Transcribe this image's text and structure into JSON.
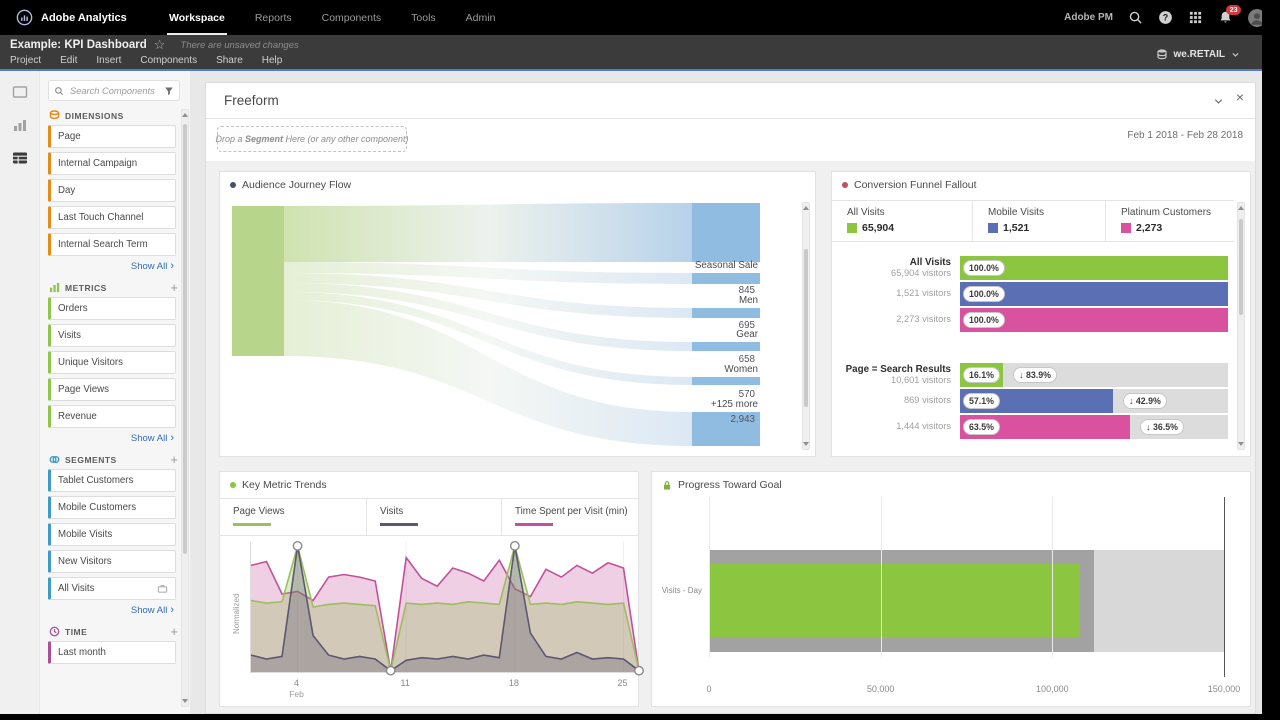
{
  "topbar": {
    "brand": "Adobe Analytics",
    "nav": [
      {
        "label": "Workspace",
        "active": true
      },
      {
        "label": "Reports",
        "active": false
      },
      {
        "label": "Components",
        "active": false
      },
      {
        "label": "Tools",
        "active": false
      },
      {
        "label": "Admin",
        "active": false
      }
    ],
    "user_label": "Adobe PM",
    "notification_count": "23"
  },
  "project_bar": {
    "title": "Example: KPI Dashboard",
    "unsaved_note": "There are unsaved changes",
    "menus": [
      "Project",
      "Edit",
      "Insert",
      "Components",
      "Share",
      "Help"
    ],
    "report_suite": "we.RETAIL"
  },
  "sidebar": {
    "search_placeholder": "Search Components",
    "sections": [
      {
        "title": "DIMENSIONS",
        "icon": "dimensions-icon",
        "accent": "#e68a19",
        "has_add": false,
        "items": [
          {
            "label": "Page"
          },
          {
            "label": "Internal Campaign"
          },
          {
            "label": "Day"
          },
          {
            "label": "Last Touch Channel"
          },
          {
            "label": "Internal Search Term"
          }
        ],
        "show_all": "Show All"
      },
      {
        "title": "METRICS",
        "icon": "metrics-icon",
        "accent": "#8ec54b",
        "has_add": true,
        "items": [
          {
            "label": "Orders"
          },
          {
            "label": "Visits"
          },
          {
            "label": "Unique Visitors"
          },
          {
            "label": "Page Views"
          },
          {
            "label": "Revenue"
          }
        ],
        "show_all": "Show All"
      },
      {
        "title": "SEGMENTS",
        "icon": "segments-icon",
        "accent": "#3e9bc8",
        "has_add": true,
        "items": [
          {
            "label": "Tablet Customers"
          },
          {
            "label": "Mobile Customers"
          },
          {
            "label": "Mobile Visits"
          },
          {
            "label": "New Visitors"
          },
          {
            "label": "All Visits",
            "org_icon": true
          }
        ],
        "show_all": "Show All"
      },
      {
        "title": "TIME",
        "icon": "time-icon",
        "accent": "#a8509c",
        "has_add": true,
        "items": [
          {
            "label": "Last month"
          }
        ]
      }
    ]
  },
  "freeform": {
    "title": "Freeform",
    "drop_zone_prefix": "Drop a ",
    "drop_zone_bold": "Segment",
    "drop_zone_suffix": " Here (or any other component)",
    "date_range": "Feb 1 2018 - Feb 28 2018"
  },
  "chart_data": [
    {
      "id": "audience-journey-flow",
      "type": "sankey",
      "title": "Audience Journey Flow",
      "marker_color": "#4a5064",
      "source_node": {
        "label": "",
        "color": "#b7d68c"
      },
      "target_color": "#90bce1",
      "targets": [
        {
          "label": "",
          "display": ""
        },
        {
          "label": "Seasonal Sale",
          "value": 845,
          "display": "845"
        },
        {
          "label": "Men",
          "value": 695,
          "display": "695"
        },
        {
          "label": "Gear",
          "value": 658,
          "display": "658"
        },
        {
          "label": "Women",
          "value": 570,
          "display": "570"
        },
        {
          "label": "+125 more",
          "value": 2943,
          "display": "2,943"
        }
      ]
    },
    {
      "id": "conversion-funnel-fallout",
      "type": "funnel",
      "title": "Conversion Funnel Fallout",
      "marker_color": "#c44d5e",
      "columns": [
        {
          "label": "All Visits",
          "display": "65,904",
          "color": "#8cc540"
        },
        {
          "label": "Mobile Visits",
          "display": "1,521",
          "color": "#5a6fb4"
        },
        {
          "label": "Platinum Customers",
          "display": "2,273",
          "color": "#d9519f"
        }
      ],
      "steps": [
        {
          "label": "All Visits",
          "rows": [
            {
              "visitors": "65,904 visitors",
              "pct": 100,
              "pct_label": "100.0%",
              "fallout": "",
              "color": "#8cc540"
            },
            {
              "visitors": "1,521 visitors",
              "pct": 100,
              "pct_label": "100.0%",
              "fallout": "",
              "color": "#5a6fb4"
            },
            {
              "visitors": "2,273 visitors",
              "pct": 100,
              "pct_label": "100.0%",
              "fallout": "",
              "color": "#d9519f"
            }
          ]
        },
        {
          "label": "Page = Search Results",
          "rows": [
            {
              "visitors": "10,601 visitors",
              "pct": 16.1,
              "pct_label": "16.1%",
              "fallout": "↓ 83.9%",
              "color": "#8cc540"
            },
            {
              "visitors": "869 visitors",
              "pct": 57.1,
              "pct_label": "57.1%",
              "fallout": "↓ 42.9%",
              "color": "#5a6fb4"
            },
            {
              "visitors": "1,444 visitors",
              "pct": 63.5,
              "pct_label": "63.5%",
              "fallout": "↓ 36.5%",
              "color": "#d9519f"
            }
          ]
        }
      ]
    },
    {
      "id": "key-metric-trends",
      "type": "area",
      "title": "Key Metric Trends",
      "marker_color": "#8cc540",
      "ylabel": "Normalized",
      "x_range": [
        1,
        26
      ],
      "x_ticks": [
        {
          "day": 4,
          "label": "4",
          "sub": "Feb"
        },
        {
          "day": 11,
          "label": "11",
          "sub": ""
        },
        {
          "day": 18,
          "label": "18",
          "sub": ""
        },
        {
          "day": 25,
          "label": "25",
          "sub": ""
        }
      ],
      "series": [
        {
          "name": "Page Views",
          "color": "#9cbf5e",
          "values": [
            0.55,
            0.53,
            0.54,
            0.97,
            0.5,
            0.52,
            0.53,
            0.52,
            0.51,
            0.01,
            0.53,
            0.52,
            0.53,
            0.52,
            0.54,
            0.53,
            0.52,
            0.97,
            0.52,
            0.53,
            0.52,
            0.54,
            0.53,
            0.52,
            0.53,
            0.01
          ]
        },
        {
          "name": "Visits",
          "color": "#5b5870",
          "values": [
            0.13,
            0.1,
            0.12,
            0.97,
            0.28,
            0.13,
            0.1,
            0.12,
            0.1,
            0.01,
            0.09,
            0.11,
            0.1,
            0.12,
            0.1,
            0.13,
            0.11,
            0.97,
            0.3,
            0.12,
            0.1,
            0.15,
            0.1,
            0.11,
            0.1,
            0.01
          ]
        },
        {
          "name": "Time Spent per Visit (min)",
          "color": "#c2519b",
          "values": [
            0.82,
            0.85,
            0.6,
            0.62,
            0.55,
            0.73,
            0.75,
            0.73,
            0.7,
            0.01,
            0.88,
            0.72,
            0.66,
            0.8,
            0.76,
            0.7,
            0.86,
            0.64,
            0.58,
            0.79,
            0.73,
            0.82,
            0.76,
            0.84,
            0.8,
            0.01
          ]
        }
      ],
      "markers": [
        {
          "day": 4,
          "value": 0.97
        },
        {
          "day": 10,
          "value": 0.01
        },
        {
          "day": 18,
          "value": 0.97
        },
        {
          "day": 26,
          "value": 0.01
        }
      ]
    },
    {
      "id": "progress-toward-goal",
      "type": "bullet",
      "title": "Progress Toward Goal",
      "locked": true,
      "category": "Visits - Day",
      "value": 108000,
      "target_band_end": 112000,
      "range_max": 150000,
      "bar_color": "#8cc540",
      "band_dark": "#a2a2a2",
      "band_light": "#d8d8d8",
      "x_ticks": [
        {
          "value": 0,
          "label": "0"
        },
        {
          "value": 50000,
          "label": "50,000"
        },
        {
          "value": 100000,
          "label": "100,000"
        },
        {
          "value": 150000,
          "label": "150,000"
        }
      ]
    }
  ]
}
